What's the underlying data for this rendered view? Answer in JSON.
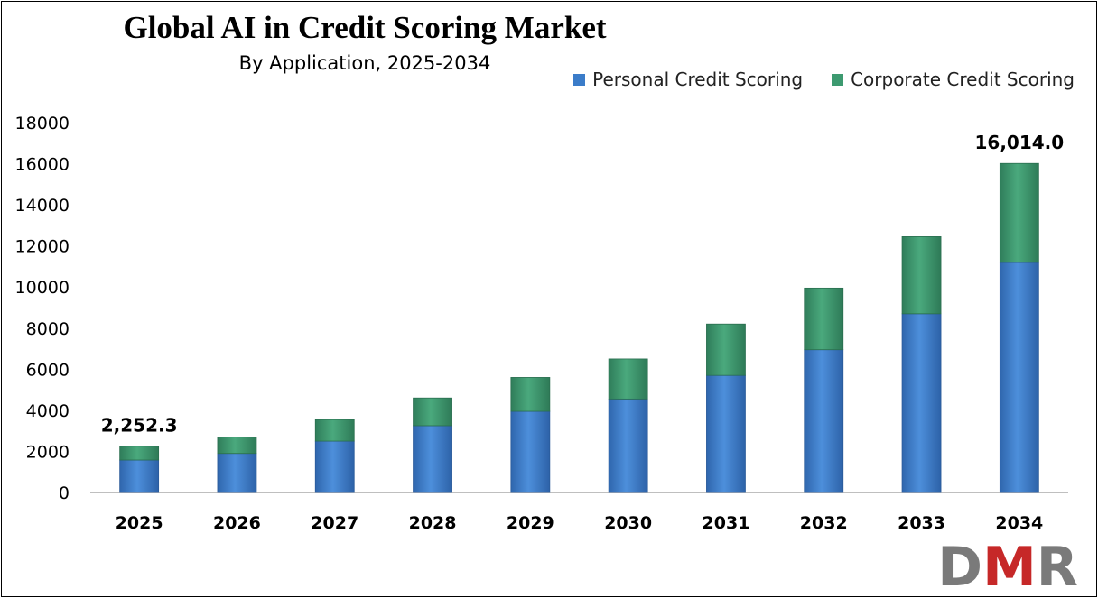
{
  "chart_data": {
    "type": "bar",
    "stacked": true,
    "title": "Global AI in Credit Scoring Market",
    "subtitle": "By Application, 2025-2034",
    "categories": [
      "2025",
      "2026",
      "2027",
      "2028",
      "2029",
      "2030",
      "2031",
      "2032",
      "2033",
      "2034"
    ],
    "series": [
      {
        "name": "Personal Credit Scoring",
        "color": "#3b7cc9",
        "values": [
          1580,
          1900,
          2500,
          3250,
          3950,
          4550,
          5700,
          6950,
          8700,
          11200
        ]
      },
      {
        "name": "Corporate Credit Scoring",
        "color": "#3d9a70",
        "values": [
          672.3,
          800,
          1050,
          1350,
          1650,
          1950,
          2500,
          3000,
          3750,
          4814
        ]
      }
    ],
    "yticks": [
      "0",
      "2000",
      "4000",
      "6000",
      "8000",
      "10000",
      "12000",
      "14000",
      "16000",
      "18000"
    ],
    "ylim": [
      0,
      18000
    ],
    "annotations": [
      {
        "category": "2025",
        "text": "2,252.3"
      },
      {
        "category": "2034",
        "text": "16,014.0"
      }
    ],
    "legend_position": "top-right",
    "grid": false
  },
  "logo": {
    "d": "D",
    "m": "M",
    "r": "R"
  }
}
